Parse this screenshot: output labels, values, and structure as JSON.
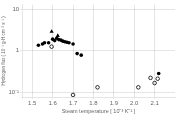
{
  "chart_data": {
    "type": "scatter",
    "xlabel": "Steam temperature [ 10⁻³ K⁻¹ ]",
    "ylabel": "Hydrogen flux ( 10⁻¹ g-H cm⁻² s⁻¹ )",
    "xlim": [
      1.45,
      2.2
    ],
    "ylim": [
      0.075,
      13
    ],
    "xticks": [
      1.5,
      1.6,
      1.7,
      1.8,
      1.9,
      {
        "value": 2.0,
        "label": "2.0"
      },
      2.1
    ],
    "yticks": [
      {
        "value": 0.1,
        "label": "10⁻¹"
      },
      1,
      10
    ],
    "log": "y",
    "grid": true,
    "series": [
      {
        "marker": "circle",
        "color": "#000000",
        "x": [
          1.53,
          1.55,
          1.56,
          1.58,
          1.6,
          1.61,
          1.62,
          1.63,
          1.64,
          1.65,
          1.66,
          1.67,
          1.68,
          1.7,
          1.72,
          1.74,
          2.12
        ],
        "values": [
          1.35,
          1.45,
          1.55,
          1.55,
          1.9,
          1.75,
          2.0,
          1.85,
          1.8,
          1.7,
          1.65,
          1.6,
          1.55,
          1.45,
          0.85,
          0.78,
          0.28
        ]
      },
      {
        "marker": "triangle",
        "color": "#000000",
        "x": [
          1.595,
          1.625
        ],
        "values": [
          2.9,
          2.3
        ]
      },
      {
        "marker": "circle_open",
        "color": "#000000",
        "x": [
          1.595,
          1.7,
          1.82,
          2.02,
          2.08,
          2.1,
          2.115
        ],
        "values": [
          1.25,
          0.085,
          0.13,
          0.13,
          0.22,
          0.165,
          0.21
        ]
      }
    ]
  }
}
